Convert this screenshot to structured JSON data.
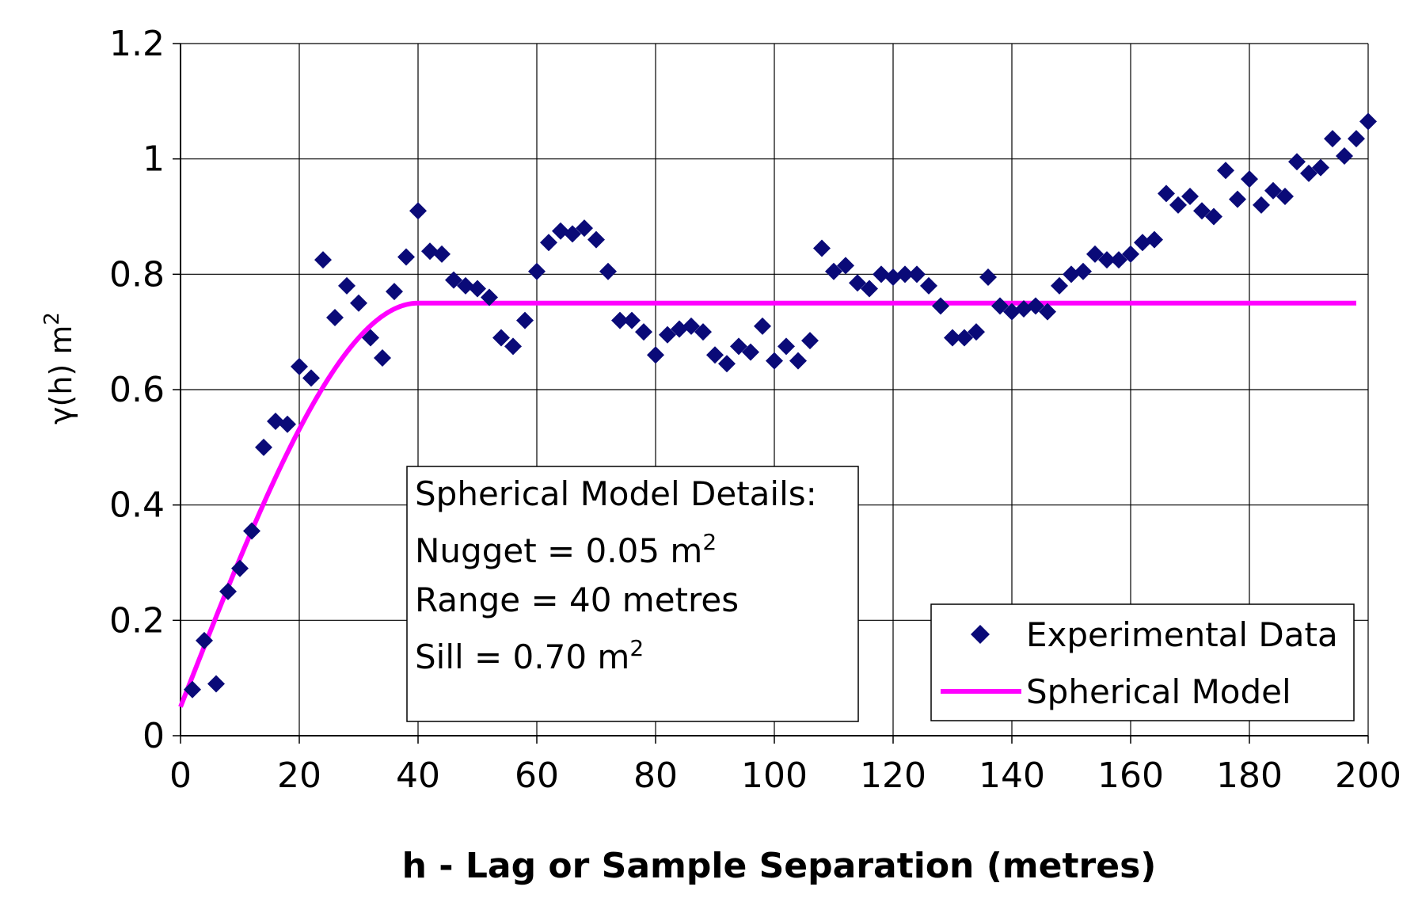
{
  "chart_data": {
    "type": "scatter",
    "xlabel": "h - Lag or Sample Separation (metres)",
    "ylabel": {
      "main": "γ(h) m",
      "sup": "2"
    },
    "xlim": [
      0,
      200
    ],
    "ylim": [
      0,
      1.2
    ],
    "x_ticks": [
      "0",
      "20",
      "40",
      "60",
      "80",
      "100",
      "120",
      "140",
      "160",
      "180",
      "200"
    ],
    "y_ticks": [
      "0",
      "0.2",
      "0.4",
      "0.6",
      "0.8",
      "1",
      "1.2"
    ],
    "grid": true,
    "legend_position": "bottom-right",
    "series": [
      {
        "name": "Experimental Data",
        "kind": "points",
        "color": "#0a0a78",
        "marker": "diamond",
        "x": [
          2,
          4,
          6,
          8,
          10,
          12,
          14,
          16,
          18,
          20,
          22,
          24,
          26,
          28,
          30,
          32,
          34,
          36,
          38,
          40,
          42,
          44,
          46,
          48,
          50,
          52,
          54,
          56,
          58,
          60,
          62,
          64,
          66,
          68,
          70,
          72,
          74,
          76,
          78,
          80,
          82,
          84,
          86,
          88,
          90,
          92,
          94,
          96,
          98,
          100,
          102,
          104,
          106,
          108,
          110,
          112,
          114,
          116,
          118,
          120,
          122,
          124,
          126,
          128,
          130,
          132,
          134,
          136,
          138,
          140,
          142,
          144,
          146,
          148,
          150,
          152,
          154,
          156,
          158,
          160,
          162,
          164,
          166,
          168,
          170,
          172,
          174,
          176,
          178,
          180,
          182,
          184,
          186,
          188,
          190,
          192,
          194,
          196,
          198,
          200
        ],
        "y": [
          0.08,
          0.165,
          0.09,
          0.25,
          0.29,
          0.355,
          0.5,
          0.545,
          0.54,
          0.64,
          0.62,
          0.825,
          0.725,
          0.78,
          0.75,
          0.69,
          0.655,
          0.77,
          0.83,
          0.91,
          0.84,
          0.835,
          0.79,
          0.78,
          0.775,
          0.76,
          0.69,
          0.675,
          0.72,
          0.805,
          0.855,
          0.875,
          0.87,
          0.88,
          0.86,
          0.805,
          0.72,
          0.72,
          0.7,
          0.66,
          0.695,
          0.705,
          0.71,
          0.7,
          0.66,
          0.645,
          0.675,
          0.665,
          0.71,
          0.65,
          0.675,
          0.65,
          0.685,
          0.845,
          0.805,
          0.815,
          0.785,
          0.775,
          0.8,
          0.795,
          0.8,
          0.8,
          0.78,
          0.745,
          0.69,
          0.69,
          0.7,
          0.795,
          0.745,
          0.735,
          0.74,
          0.745,
          0.735,
          0.78,
          0.8,
          0.805,
          0.835,
          0.825,
          0.825,
          0.835,
          0.855,
          0.86,
          0.94,
          0.92,
          0.935,
          0.91,
          0.9,
          0.98,
          0.93,
          0.965,
          0.92,
          0.945,
          0.935,
          0.995,
          0.975,
          0.985,
          1.035,
          1.005,
          1.035,
          1.065
        ]
      },
      {
        "name": "Spherical Model",
        "kind": "line",
        "color": "#ff00ff",
        "nugget": 0.05,
        "range": 40,
        "sill": 0.7,
        "x_end": 198
      }
    ]
  },
  "details_box": {
    "title": "Spherical Model Details:",
    "nugget_label": "Nugget = 0.05 m",
    "nugget_sup": "2",
    "range_label": "Range = 40 metres",
    "sill_label": "Sill = 0.70 m",
    "sill_sup": "2"
  }
}
